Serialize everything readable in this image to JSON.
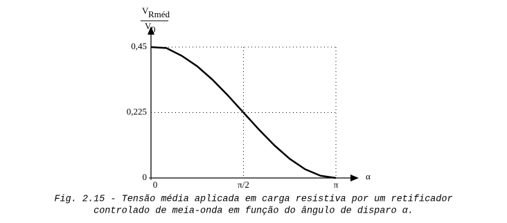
{
  "chart_data": {
    "type": "line",
    "y_label": {
      "numerator": "V",
      "numerator_sub": "Rméd",
      "denominator": "V",
      "denominator_sub": "0"
    },
    "x_label": "α",
    "caption": [
      "Fig. 2.15 - Tensão média aplicada em carga resistiva por um retificador",
      "controlado de meia-onda em função do ângulo de disparo α."
    ],
    "x": [
      0,
      0.2618,
      0.5236,
      0.7854,
      1.0472,
      1.309,
      1.5708,
      1.8326,
      2.0944,
      2.3562,
      2.618,
      2.8798,
      3.1416
    ],
    "values": [
      0.45,
      0.4467,
      0.4199,
      0.3841,
      0.3375,
      0.2832,
      0.225,
      0.1668,
      0.1125,
      0.0659,
      0.0301,
      0.0077,
      0
    ],
    "color": "#000000",
    "xlim": [
      0,
      3.1416
    ],
    "ylim": [
      0,
      0.45
    ],
    "xticks": [
      0,
      {
        "value": 1.5708,
        "label": "π/2"
      },
      {
        "value": 3.1416,
        "label": "π"
      }
    ],
    "yticks": [
      0,
      {
        "value": 0.225,
        "label": "0,225"
      },
      {
        "value": 0.45,
        "label": "0,45"
      }
    ],
    "grid": true
  }
}
